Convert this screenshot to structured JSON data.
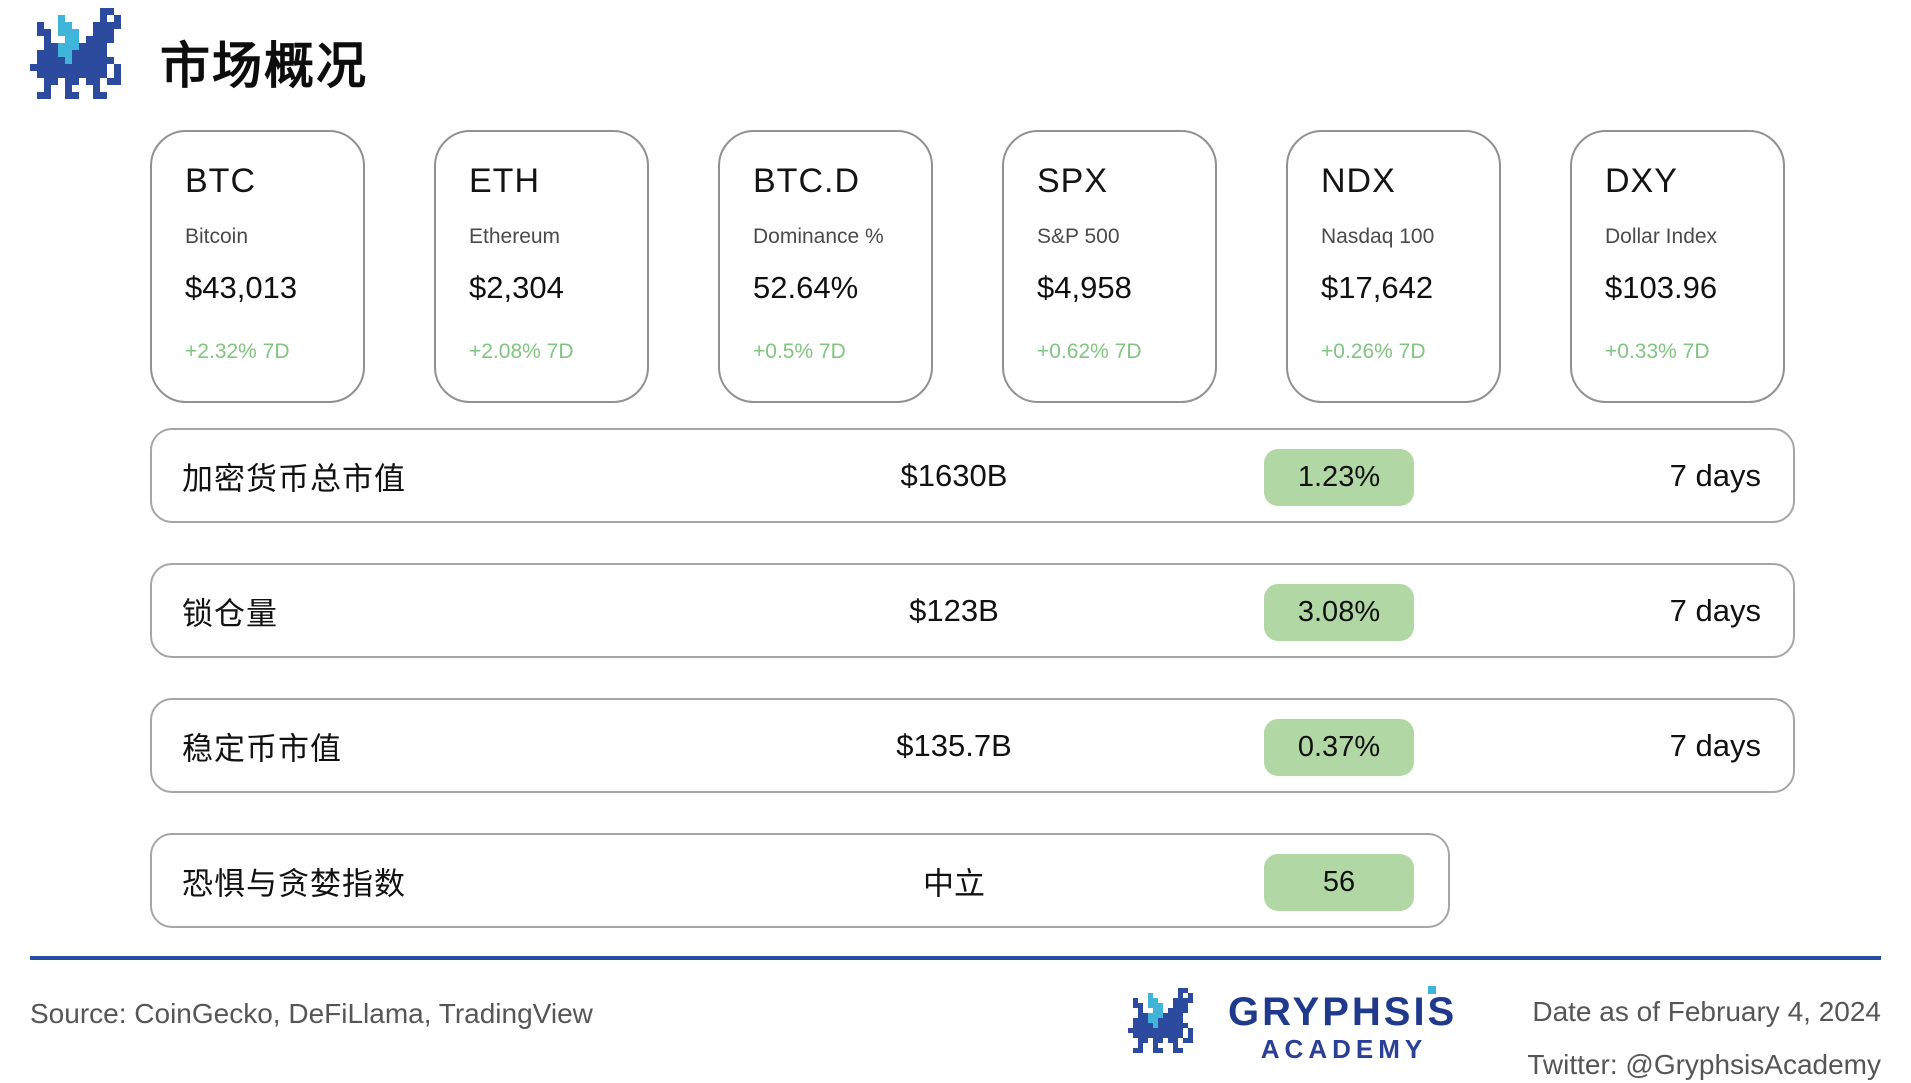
{
  "header": {
    "title": "市场概况"
  },
  "colors": {
    "green_text": "#80c580",
    "badge_bg": "#b1d7a4",
    "divider_blue": "#2b4da1",
    "brand_navy": "#2c4a9e",
    "brand_cyan": "#3fb6d9"
  },
  "cards": [
    {
      "ticker": "BTC",
      "name": "Bitcoin",
      "value": "$43,013",
      "change": "+2.32% 7D"
    },
    {
      "ticker": "ETH",
      "name": "Ethereum",
      "value": "$2,304",
      "change": "+2.08% 7D"
    },
    {
      "ticker": "BTC.D",
      "name": "Dominance %",
      "value": "52.64%",
      "change": "+0.5% 7D"
    },
    {
      "ticker": "SPX",
      "name": "S&P 500",
      "value": "$4,958",
      "change": "+0.62% 7D"
    },
    {
      "ticker": "NDX",
      "name": "Nasdaq 100",
      "value": "$17,642",
      "change": "+0.26% 7D"
    },
    {
      "ticker": "DXY",
      "name": "Dollar Index",
      "value": "$103.96",
      "change": "+0.33% 7D"
    }
  ],
  "metrics": [
    {
      "label": "加密货币总市值",
      "value": "$1630B",
      "badge": "1.23%",
      "period": "7 days"
    },
    {
      "label": "锁仓量",
      "value": "$123B",
      "badge": "3.08%",
      "period": "7 days"
    },
    {
      "label": "稳定币市值",
      "value": "$135.7B",
      "badge": "0.37%",
      "period": "7 days"
    },
    {
      "label": "恐惧与贪婪指数",
      "value": "中立",
      "badge": "56",
      "period": ""
    }
  ],
  "footer": {
    "source": "Source: CoinGecko, DeFiLlama, TradingView",
    "brand_name": "GRYPHSIS",
    "brand_sub": "ACADEMY",
    "date": "Date as of February 4, 2024",
    "twitter": "Twitter: @GryphsisAcademy"
  }
}
